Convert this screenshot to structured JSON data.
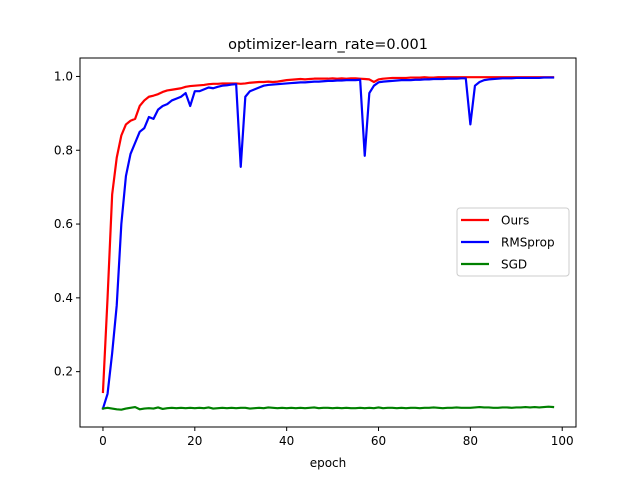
{
  "chart_data": {
    "type": "line",
    "title": "optimizer-learn_rate=0.001",
    "xlabel": "epoch",
    "ylabel": "",
    "xlim": [
      -5,
      103
    ],
    "ylim": [
      0.05,
      1.05
    ],
    "xticks": [
      0,
      20,
      40,
      60,
      80,
      100
    ],
    "yticks": [
      0.2,
      0.4,
      0.6,
      0.8,
      1.0
    ],
    "xtick_labels": [
      "0",
      "20",
      "40",
      "60",
      "80",
      "100"
    ],
    "ytick_labels": [
      "0.2",
      "0.4",
      "0.6",
      "0.8",
      "1.0"
    ],
    "grid": false,
    "legend_position": "center-right",
    "x": [
      0,
      1,
      2,
      3,
      4,
      5,
      6,
      7,
      8,
      9,
      10,
      11,
      12,
      13,
      14,
      15,
      16,
      17,
      18,
      19,
      20,
      21,
      22,
      23,
      24,
      25,
      26,
      27,
      28,
      29,
      30,
      31,
      32,
      33,
      34,
      35,
      36,
      37,
      38,
      39,
      40,
      41,
      42,
      43,
      44,
      45,
      46,
      47,
      48,
      49,
      50,
      51,
      52,
      53,
      54,
      55,
      56,
      57,
      58,
      59,
      60,
      61,
      62,
      63,
      64,
      65,
      66,
      67,
      68,
      69,
      70,
      71,
      72,
      73,
      74,
      75,
      76,
      77,
      78,
      79,
      80,
      81,
      82,
      83,
      84,
      85,
      86,
      87,
      88,
      89,
      90,
      91,
      92,
      93,
      94,
      95,
      96,
      97,
      98
    ],
    "series": [
      {
        "name": "Ours",
        "color": "#ff0000",
        "values": [
          0.145,
          0.4,
          0.68,
          0.78,
          0.84,
          0.87,
          0.88,
          0.885,
          0.92,
          0.935,
          0.945,
          0.948,
          0.952,
          0.958,
          0.962,
          0.964,
          0.966,
          0.968,
          0.972,
          0.974,
          0.975,
          0.976,
          0.977,
          0.979,
          0.98,
          0.98,
          0.981,
          0.981,
          0.981,
          0.981,
          0.98,
          0.981,
          0.983,
          0.984,
          0.985,
          0.985,
          0.986,
          0.985,
          0.986,
          0.988,
          0.99,
          0.991,
          0.992,
          0.993,
          0.992,
          0.993,
          0.994,
          0.994,
          0.994,
          0.994,
          0.995,
          0.994,
          0.995,
          0.994,
          0.995,
          0.995,
          0.994,
          0.993,
          0.992,
          0.985,
          0.992,
          0.994,
          0.995,
          0.996,
          0.996,
          0.996,
          0.996,
          0.997,
          0.997,
          0.997,
          0.998,
          0.997,
          0.997,
          0.998,
          0.998,
          0.998,
          0.998,
          0.998,
          0.998,
          0.998,
          0.998,
          0.998,
          0.998,
          0.998,
          0.998,
          0.998,
          0.998,
          0.998,
          0.998,
          0.998,
          0.998,
          0.998,
          0.998,
          0.998,
          0.998,
          0.998,
          0.998,
          0.998,
          0.998
        ]
      },
      {
        "name": "RMSprop",
        "color": "#0000ff",
        "values": [
          0.1,
          0.14,
          0.25,
          0.38,
          0.6,
          0.73,
          0.79,
          0.82,
          0.85,
          0.86,
          0.89,
          0.885,
          0.91,
          0.92,
          0.925,
          0.935,
          0.94,
          0.945,
          0.955,
          0.92,
          0.96,
          0.96,
          0.965,
          0.97,
          0.968,
          0.972,
          0.975,
          0.976,
          0.978,
          0.979,
          0.755,
          0.945,
          0.96,
          0.965,
          0.97,
          0.975,
          0.977,
          0.978,
          0.979,
          0.98,
          0.981,
          0.982,
          0.983,
          0.984,
          0.984,
          0.985,
          0.986,
          0.986,
          0.987,
          0.988,
          0.988,
          0.989,
          0.989,
          0.99,
          0.99,
          0.99,
          0.991,
          0.785,
          0.955,
          0.975,
          0.984,
          0.986,
          0.987,
          0.988,
          0.989,
          0.99,
          0.99,
          0.99,
          0.991,
          0.991,
          0.992,
          0.992,
          0.993,
          0.993,
          0.993,
          0.994,
          0.994,
          0.994,
          0.995,
          0.995,
          0.87,
          0.975,
          0.985,
          0.99,
          0.992,
          0.993,
          0.994,
          0.995,
          0.995,
          0.995,
          0.996,
          0.996,
          0.996,
          0.996,
          0.996,
          0.996,
          0.997,
          0.997,
          0.997
        ]
      },
      {
        "name": "SGD",
        "color": "#008000",
        "values": [
          0.1,
          0.102,
          0.1,
          0.098,
          0.097,
          0.1,
          0.102,
          0.104,
          0.098,
          0.1,
          0.101,
          0.1,
          0.103,
          0.099,
          0.101,
          0.102,
          0.101,
          0.102,
          0.101,
          0.102,
          0.101,
          0.102,
          0.101,
          0.103,
          0.1,
          0.101,
          0.102,
          0.101,
          0.102,
          0.101,
          0.102,
          0.102,
          0.1,
          0.101,
          0.102,
          0.101,
          0.103,
          0.102,
          0.101,
          0.102,
          0.101,
          0.102,
          0.101,
          0.102,
          0.101,
          0.102,
          0.103,
          0.101,
          0.102,
          0.102,
          0.101,
          0.102,
          0.101,
          0.102,
          0.101,
          0.101,
          0.102,
          0.101,
          0.102,
          0.101,
          0.103,
          0.101,
          0.102,
          0.102,
          0.101,
          0.102,
          0.101,
          0.102,
          0.102,
          0.101,
          0.102,
          0.102,
          0.103,
          0.102,
          0.101,
          0.102,
          0.102,
          0.103,
          0.102,
          0.102,
          0.102,
          0.103,
          0.104,
          0.103,
          0.103,
          0.102,
          0.102,
          0.103,
          0.103,
          0.102,
          0.103,
          0.103,
          0.104,
          0.103,
          0.104,
          0.103,
          0.104,
          0.105,
          0.104
        ]
      }
    ]
  }
}
